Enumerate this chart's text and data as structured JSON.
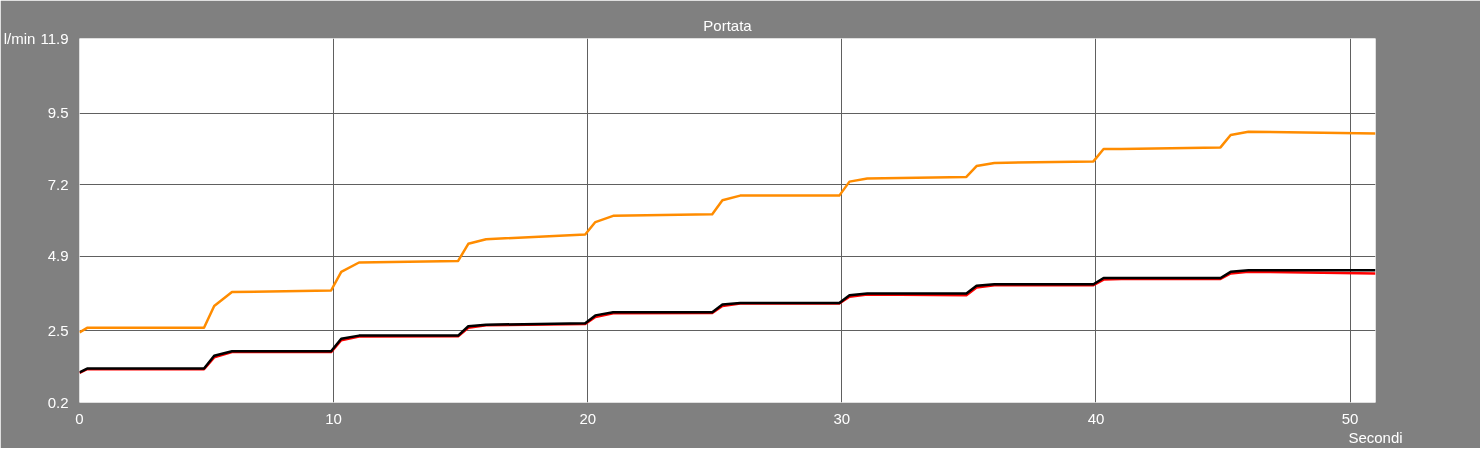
{
  "chart_data": {
    "type": "line",
    "title": "Portata",
    "xlabel": "Secondi",
    "ylabel": "l/min",
    "x": [
      0,
      0.3,
      4.9,
      5.3,
      6.0,
      9.9,
      10.3,
      11.0,
      14.9,
      15.3,
      16.0,
      19.9,
      20.3,
      21.0,
      24.9,
      25.3,
      26.0,
      29.9,
      30.3,
      31.0,
      34.9,
      35.3,
      36.0,
      39.9,
      40.3,
      41.0,
      44.9,
      45.3,
      46.0,
      51.0
    ],
    "series": [
      {
        "color": "#ff8c00",
        "values": [
          2.45,
          2.6,
          2.6,
          3.3,
          3.75,
          3.8,
          4.4,
          4.7,
          4.75,
          5.3,
          5.45,
          5.6,
          6.0,
          6.2,
          6.25,
          6.7,
          6.85,
          6.85,
          7.3,
          7.4,
          7.45,
          7.8,
          7.9,
          7.95,
          8.35,
          8.35,
          8.4,
          8.8,
          8.9,
          8.85
        ]
      },
      {
        "color": "#ff0000",
        "values": [
          1.15,
          1.27,
          1.27,
          1.65,
          1.82,
          1.82,
          2.2,
          2.32,
          2.33,
          2.6,
          2.68,
          2.72,
          2.95,
          3.07,
          3.08,
          3.3,
          3.38,
          3.38,
          3.6,
          3.67,
          3.65,
          3.9,
          3.97,
          3.97,
          4.15,
          4.17,
          4.17,
          4.35,
          4.4,
          4.35
        ]
      },
      {
        "color": "#000000",
        "values": [
          1.17,
          1.29,
          1.29,
          1.7,
          1.85,
          1.85,
          2.25,
          2.35,
          2.35,
          2.65,
          2.7,
          2.75,
          3.0,
          3.1,
          3.1,
          3.35,
          3.4,
          3.4,
          3.65,
          3.7,
          3.7,
          3.95,
          4.0,
          4.0,
          4.2,
          4.2,
          4.2,
          4.4,
          4.45,
          4.45
        ]
      }
    ],
    "xlim": [
      0,
      51
    ],
    "ylim": [
      0.2,
      11.9
    ],
    "xticks": [
      0,
      10,
      20,
      30,
      40,
      50
    ],
    "yticks": [
      0.2,
      2.5,
      4.9,
      7.2,
      9.5,
      11.9
    ],
    "grid": true,
    "marker": "none",
    "line_style": "solid"
  }
}
